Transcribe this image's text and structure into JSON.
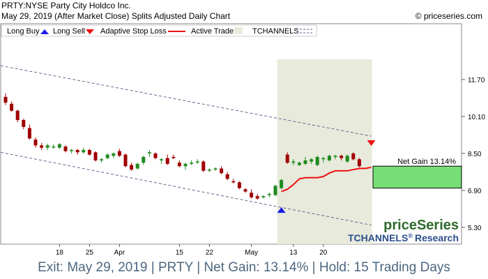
{
  "header": {
    "title": "PRTY:NYSE Party City Holdco Inc.",
    "date_line": "May 29, 2019 (After Market Close)  Splits Adjusted Daily Chart",
    "copyright": "© priceseries.com"
  },
  "legend": {
    "long_buy": "Long Buy",
    "long_sell": "Long Sell",
    "adaptive_stop": "Adaptive Stop Loss",
    "active_trade": "Active Trade",
    "tchannels": "TCHANNELS"
  },
  "brand": {
    "name": "priceSeries",
    "tchannels": "TCHANNELS",
    "registered": "®",
    "research": "Research"
  },
  "net_gain_label": "Net Gain 13.14%",
  "footer": "Exit: May 29, 2019 | PRTY | Net Gain: 13.14% | Hold: 15 Trading Days",
  "colors": {
    "up": "#1f8a1f",
    "down": "#a00000",
    "stop": "#ee1111",
    "active_zone": "#e8eadc",
    "gain_box": "#77dd77",
    "channel": "#5b6b8c",
    "brand_green": "#2d6a2d",
    "brand_blue": "#2a4f8a"
  },
  "chart_data": {
    "type": "candlestick",
    "y_ticks": [
      "11.70",
      "10.10",
      "8.50",
      "6.90",
      "5.30"
    ],
    "x_labels": [
      {
        "label": "18",
        "index": 9
      },
      {
        "label": "25",
        "index": 14
      },
      {
        "label": "Apr",
        "index": 19
      },
      {
        "label": "15",
        "index": 29
      },
      {
        "label": "22",
        "index": 34
      },
      {
        "label": "May",
        "index": 41
      },
      {
        "label": "13",
        "index": 48
      },
      {
        "label": "20",
        "index": 53
      }
    ],
    "candles": [
      {
        "o": 10.95,
        "h": 11.1,
        "l": 10.6,
        "c": 10.7
      },
      {
        "o": 10.65,
        "h": 10.75,
        "l": 10.3,
        "c": 10.35
      },
      {
        "o": 10.35,
        "h": 10.4,
        "l": 9.85,
        "c": 9.95
      },
      {
        "o": 9.95,
        "h": 10.0,
        "l": 9.55,
        "c": 9.65
      },
      {
        "o": 9.6,
        "h": 9.75,
        "l": 9.1,
        "c": 9.15
      },
      {
        "o": 9.1,
        "h": 9.2,
        "l": 8.75,
        "c": 8.85
      },
      {
        "o": 8.85,
        "h": 8.95,
        "l": 8.65,
        "c": 8.75
      },
      {
        "o": 8.75,
        "h": 8.92,
        "l": 8.65,
        "c": 8.85
      },
      {
        "o": 8.8,
        "h": 8.9,
        "l": 8.7,
        "c": 8.8
      },
      {
        "o": 8.75,
        "h": 8.95,
        "l": 8.7,
        "c": 8.9
      },
      {
        "o": 8.8,
        "h": 8.85,
        "l": 8.55,
        "c": 8.6
      },
      {
        "o": 8.6,
        "h": 8.7,
        "l": 8.5,
        "c": 8.65
      },
      {
        "o": 8.65,
        "h": 8.7,
        "l": 8.45,
        "c": 8.55
      },
      {
        "o": 8.55,
        "h": 8.75,
        "l": 8.5,
        "c": 8.65
      },
      {
        "o": 8.65,
        "h": 8.7,
        "l": 8.4,
        "c": 8.45
      },
      {
        "o": 8.55,
        "h": 8.6,
        "l": 8.15,
        "c": 8.2
      },
      {
        "o": 8.2,
        "h": 8.3,
        "l": 8.1,
        "c": 8.25
      },
      {
        "o": 8.3,
        "h": 8.5,
        "l": 8.25,
        "c": 8.45
      },
      {
        "o": 8.4,
        "h": 8.55,
        "l": 8.3,
        "c": 8.5
      },
      {
        "o": 8.6,
        "h": 8.7,
        "l": 8.35,
        "c": 8.4
      },
      {
        "o": 8.45,
        "h": 8.5,
        "l": 7.9,
        "c": 7.95
      },
      {
        "o": 8.0,
        "h": 8.1,
        "l": 7.75,
        "c": 7.8
      },
      {
        "o": 7.85,
        "h": 8.1,
        "l": 7.8,
        "c": 8.05
      },
      {
        "o": 8.1,
        "h": 8.4,
        "l": 8.0,
        "c": 8.35
      },
      {
        "o": 8.5,
        "h": 8.65,
        "l": 8.35,
        "c": 8.55
      },
      {
        "o": 8.5,
        "h": 8.55,
        "l": 8.25,
        "c": 8.3
      },
      {
        "o": 8.2,
        "h": 8.3,
        "l": 8.05,
        "c": 8.25
      },
      {
        "o": 8.3,
        "h": 8.45,
        "l": 8.0,
        "c": 8.05
      },
      {
        "o": 8.35,
        "h": 8.45,
        "l": 8.25,
        "c": 8.3
      },
      {
        "o": 8.1,
        "h": 8.2,
        "l": 7.9,
        "c": 7.95
      },
      {
        "o": 7.95,
        "h": 8.1,
        "l": 7.8,
        "c": 8.05
      },
      {
        "o": 8.05,
        "h": 8.2,
        "l": 8.0,
        "c": 8.1
      },
      {
        "o": 8.15,
        "h": 8.25,
        "l": 8.05,
        "c": 8.15
      },
      {
        "o": 8.15,
        "h": 8.2,
        "l": 7.7,
        "c": 7.75
      },
      {
        "o": 7.8,
        "h": 7.85,
        "l": 7.7,
        "c": 7.8
      },
      {
        "o": 7.8,
        "h": 7.9,
        "l": 7.75,
        "c": 7.85
      },
      {
        "o": 7.85,
        "h": 7.95,
        "l": 7.6,
        "c": 7.65
      },
      {
        "o": 7.6,
        "h": 7.7,
        "l": 7.35,
        "c": 7.4
      },
      {
        "o": 7.3,
        "h": 7.4,
        "l": 7.2,
        "c": 7.25
      },
      {
        "o": 7.25,
        "h": 7.3,
        "l": 6.95,
        "c": 7.0
      },
      {
        "o": 6.95,
        "h": 7.0,
        "l": 6.8,
        "c": 6.85
      },
      {
        "o": 6.8,
        "h": 6.95,
        "l": 6.55,
        "c": 6.6
      },
      {
        "o": 6.65,
        "h": 6.75,
        "l": 6.5,
        "c": 6.55
      },
      {
        "o": 6.6,
        "h": 6.7,
        "l": 6.55,
        "c": 6.65
      },
      {
        "o": 6.7,
        "h": 6.8,
        "l": 6.6,
        "c": 6.75
      },
      {
        "o": 6.7,
        "h": 7.15,
        "l": 6.65,
        "c": 7.1
      },
      {
        "o": 7.0,
        "h": 7.4,
        "l": 6.95,
        "c": 7.35
      },
      {
        "o": 8.45,
        "h": 8.55,
        "l": 8.05,
        "c": 8.1
      },
      {
        "o": 8.1,
        "h": 8.25,
        "l": 8.0,
        "c": 8.15
      },
      {
        "o": 8.0,
        "h": 8.15,
        "l": 7.95,
        "c": 8.1
      },
      {
        "o": 8.05,
        "h": 8.35,
        "l": 8.0,
        "c": 8.2
      },
      {
        "o": 8.15,
        "h": 8.3,
        "l": 8.05,
        "c": 8.25
      },
      {
        "o": 8.0,
        "h": 8.4,
        "l": 7.95,
        "c": 8.35
      },
      {
        "o": 8.25,
        "h": 8.35,
        "l": 8.1,
        "c": 8.3
      },
      {
        "o": 8.2,
        "h": 8.45,
        "l": 8.15,
        "c": 8.4
      },
      {
        "o": 8.35,
        "h": 8.45,
        "l": 8.25,
        "c": 8.4
      },
      {
        "o": 8.4,
        "h": 8.45,
        "l": 8.2,
        "c": 8.3
      },
      {
        "o": 8.15,
        "h": 8.45,
        "l": 8.1,
        "c": 8.4
      },
      {
        "o": 8.5,
        "h": 8.55,
        "l": 8.2,
        "c": 8.25
      },
      {
        "o": 8.25,
        "h": 8.3,
        "l": 7.9,
        "c": 7.95
      }
    ],
    "stop_loss": [
      {
        "i": 46,
        "v": 6.85
      },
      {
        "i": 47,
        "v": 6.95
      },
      {
        "i": 48,
        "v": 7.15
      },
      {
        "i": 49,
        "v": 7.4
      },
      {
        "i": 50,
        "v": 7.45
      },
      {
        "i": 51,
        "v": 7.45
      },
      {
        "i": 52,
        "v": 7.45
      },
      {
        "i": 53,
        "v": 7.5
      },
      {
        "i": 54,
        "v": 7.65
      },
      {
        "i": 55,
        "v": 7.75
      },
      {
        "i": 56,
        "v": 7.75
      },
      {
        "i": 57,
        "v": 7.75
      },
      {
        "i": 58,
        "v": 7.8
      },
      {
        "i": 59,
        "v": 7.85
      },
      {
        "i": 60,
        "v": 7.85
      },
      {
        "i": 61,
        "v": 7.9
      }
    ],
    "entry": {
      "index": 46,
      "price": 6.05
    },
    "exit": {
      "index": 61,
      "price": 8.95
    },
    "channel_upper": {
      "start": {
        "i": 0,
        "v": 12.3
      },
      "end": {
        "i": 61,
        "v": 9.25
      }
    },
    "channel_lower": {
      "start": {
        "i": 0,
        "v": 8.55
      },
      "end": {
        "i": 61,
        "v": 5.4
      }
    },
    "active_zone": {
      "start_index": 46,
      "end_index": 61
    },
    "gain_box": {
      "from": 7.0,
      "to": 7.95
    }
  }
}
